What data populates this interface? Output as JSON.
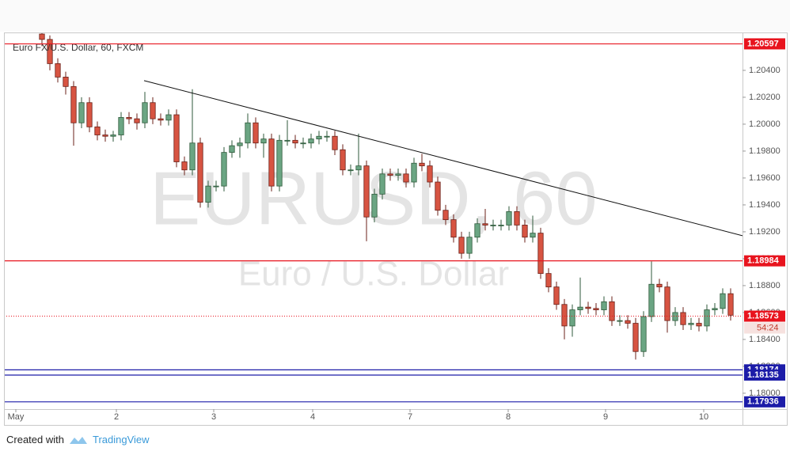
{
  "chart_data": {
    "type": "candlestick",
    "title": "Euro FX/U.S. Dollar, 60, FXCM",
    "watermark": "EURUSD, 60",
    "watermark_subtitle": "Euro / U.S. Dollar",
    "open": [
      1.2067,
      1.2063,
      1.2045,
      1.2035,
      1.2028,
      1.2001,
      1.2016,
      1.1998,
      1.1992,
      1.1991,
      1.1992,
      1.2005,
      1.2004,
      1.2001,
      1.2016,
      1.2004,
      1.2003,
      1.2007,
      1.1972,
      1.1966,
      1.1986,
      1.1942,
      1.1954,
      1.1954,
      1.1979,
      1.1984,
      1.1986,
      1.2001,
      1.1986,
      1.1989,
      1.1954,
      1.1988,
      1.1988,
      1.1986,
      1.1986,
      1.1989,
      1.1991,
      1.1991,
      1.1981,
      1.1966,
      1.1966,
      1.1969,
      1.1931,
      1.1948,
      1.1963,
      1.1962,
      1.1963,
      1.1957,
      1.1971,
      1.1969,
      1.1957,
      1.1936,
      1.1929,
      1.1916,
      1.1904,
      1.1916,
      1.1926,
      1.1925,
      1.1925,
      1.1925,
      1.1935,
      1.1925,
      1.1916,
      1.1919,
      1.1889,
      1.1879,
      1.1866,
      1.185,
      1.1862,
      1.1864,
      1.1863,
      1.1862,
      1.1868,
      1.1854,
      1.1854,
      1.1852,
      1.1831,
      1.1857,
      1.1881,
      1.1879,
      1.1854,
      1.186,
      1.1851,
      1.1852,
      1.185,
      1.1862,
      1.1863,
      1.1874
    ],
    "high": [
      1.2068,
      1.2066,
      1.2049,
      1.2039,
      1.2032,
      1.202,
      1.202,
      1.2002,
      1.1996,
      1.1995,
      1.2009,
      1.2009,
      1.2008,
      1.2024,
      1.202,
      1.2008,
      1.2011,
      1.2011,
      1.1976,
      1.2026,
      1.199,
      1.1958,
      1.1958,
      1.1983,
      1.1988,
      1.199,
      1.2008,
      1.2005,
      1.1993,
      1.1993,
      1.1992,
      1.2003,
      1.1992,
      1.199,
      1.1993,
      1.1995,
      1.1995,
      1.1995,
      1.1985,
      1.197,
      1.1993,
      1.1973,
      1.1952,
      1.1967,
      1.1967,
      1.1967,
      1.1967,
      1.1975,
      1.1978,
      1.1973,
      1.1961,
      1.194,
      1.1933,
      1.192,
      1.192,
      1.193,
      1.1937,
      1.1929,
      1.1929,
      1.1939,
      1.1939,
      1.1929,
      1.1932,
      1.1923,
      1.1893,
      1.1883,
      1.187,
      1.1866,
      1.1886,
      1.1868,
      1.1867,
      1.1872,
      1.1872,
      1.1858,
      1.1858,
      1.1856,
      1.1861,
      1.1898,
      1.1885,
      1.1883,
      1.1864,
      1.1864,
      1.1856,
      1.1856,
      1.1866,
      1.1867,
      1.1878,
      1.1878
    ],
    "low": [
      1.2058,
      1.204,
      1.2031,
      1.2022,
      1.1984,
      1.1997,
      1.1994,
      1.1988,
      1.1987,
      1.1987,
      1.1988,
      1.2,
      1.1996,
      1.1997,
      1.2,
      1.1999,
      1.1999,
      1.1968,
      1.1962,
      1.1962,
      1.1938,
      1.1938,
      1.195,
      1.195,
      1.1975,
      1.1975,
      1.1982,
      1.1982,
      1.1975,
      1.195,
      1.195,
      1.1984,
      1.1982,
      1.1982,
      1.1982,
      1.1985,
      1.1987,
      1.1977,
      1.1962,
      1.1962,
      1.1962,
      1.1913,
      1.1927,
      1.1944,
      1.1958,
      1.1958,
      1.1953,
      1.1953,
      1.1965,
      1.1953,
      1.1932,
      1.1925,
      1.1912,
      1.19,
      1.19,
      1.1912,
      1.1921,
      1.1921,
      1.1921,
      1.1921,
      1.1921,
      1.1912,
      1.1912,
      1.1885,
      1.1875,
      1.1862,
      1.184,
      1.1842,
      1.1858,
      1.1859,
      1.1858,
      1.1858,
      1.185,
      1.185,
      1.1848,
      1.1825,
      1.1827,
      1.1853,
      1.1875,
      1.1845,
      1.185,
      1.1847,
      1.1847,
      1.1846,
      1.1846,
      1.1858,
      1.1859,
      1.1854
    ],
    "close": [
      1.2063,
      1.2045,
      1.2035,
      1.2028,
      1.2001,
      1.2016,
      1.1998,
      1.1992,
      1.1991,
      1.1992,
      1.2005,
      1.2004,
      1.2001,
      1.2016,
      1.2004,
      1.2003,
      1.2007,
      1.1972,
      1.1966,
      1.1986,
      1.1942,
      1.1954,
      1.1954,
      1.1979,
      1.1984,
      1.1986,
      1.2001,
      1.1986,
      1.1989,
      1.1954,
      1.1988,
      1.1988,
      1.1986,
      1.1986,
      1.1989,
      1.1991,
      1.1991,
      1.1981,
      1.1966,
      1.1966,
      1.1969,
      1.1931,
      1.1948,
      1.1963,
      1.1962,
      1.1963,
      1.1957,
      1.1971,
      1.1969,
      1.1957,
      1.1936,
      1.1929,
      1.1916,
      1.1904,
      1.1916,
      1.1926,
      1.1925,
      1.1925,
      1.1925,
      1.1935,
      1.1925,
      1.1916,
      1.1919,
      1.1889,
      1.1879,
      1.1866,
      1.185,
      1.1862,
      1.1864,
      1.1863,
      1.1862,
      1.1868,
      1.1854,
      1.1854,
      1.1852,
      1.1831,
      1.1857,
      1.1881,
      1.1879,
      1.1854,
      1.186,
      1.1851,
      1.1852,
      1.185,
      1.1862,
      1.1863,
      1.1874,
      1.1858
    ],
    "up_color": "#6ba583",
    "down_color": "#d75442",
    "xlim": [
      -4,
      89
    ],
    "xticks": [
      {
        "value": -2.8,
        "label": "May"
      },
      {
        "value": 9.9,
        "label": "2"
      },
      {
        "value": 22.2,
        "label": "3"
      },
      {
        "value": 34.7,
        "label": "4"
      },
      {
        "value": 47,
        "label": "7"
      },
      {
        "value": 59.4,
        "label": "8"
      },
      {
        "value": 71.7,
        "label": "9"
      },
      {
        "value": 84.1,
        "label": "10"
      }
    ],
    "ylim": [
      1.17882,
      1.20676
    ],
    "yticks": [
      {
        "value": 1.18,
        "label": "1.18000"
      },
      {
        "value": 1.182,
        "label": "1.18200"
      },
      {
        "value": 1.184,
        "label": "1.18400"
      },
      {
        "value": 1.186,
        "label": "1.18600"
      },
      {
        "value": 1.188,
        "label": "1.18800"
      },
      {
        "value": 1.19,
        "label": "1.19000"
      },
      {
        "value": 1.192,
        "label": "1.19200"
      },
      {
        "value": 1.194,
        "label": "1.19400"
      },
      {
        "value": 1.196,
        "label": "1.19600"
      },
      {
        "value": 1.198,
        "label": "1.19800"
      },
      {
        "value": 1.2,
        "label": "1.20000"
      },
      {
        "value": 1.202,
        "label": "1.20200"
      },
      {
        "value": 1.204,
        "label": "1.20400"
      }
    ],
    "levels": [
      {
        "value": 1.20597,
        "color": "#e8141e"
      },
      {
        "value": 1.18984,
        "color": "#e8141e"
      },
      {
        "value": 1.18174,
        "color": "#1c1ca8"
      },
      {
        "value": 1.18135,
        "color": "#1c1ca8"
      },
      {
        "value": 1.17936,
        "color": "#1c1ca8"
      }
    ],
    "last_price": {
      "value": 1.18573,
      "color": "#e8141e"
    },
    "countdown": "54:24",
    "trendline": {
      "x": [
        13.4,
        89
      ],
      "y": [
        1.20324,
        1.19171
      ],
      "color": "#111111"
    },
    "grid": false
  },
  "footer": {
    "created_with": "Created with",
    "brand": "TradingView"
  }
}
